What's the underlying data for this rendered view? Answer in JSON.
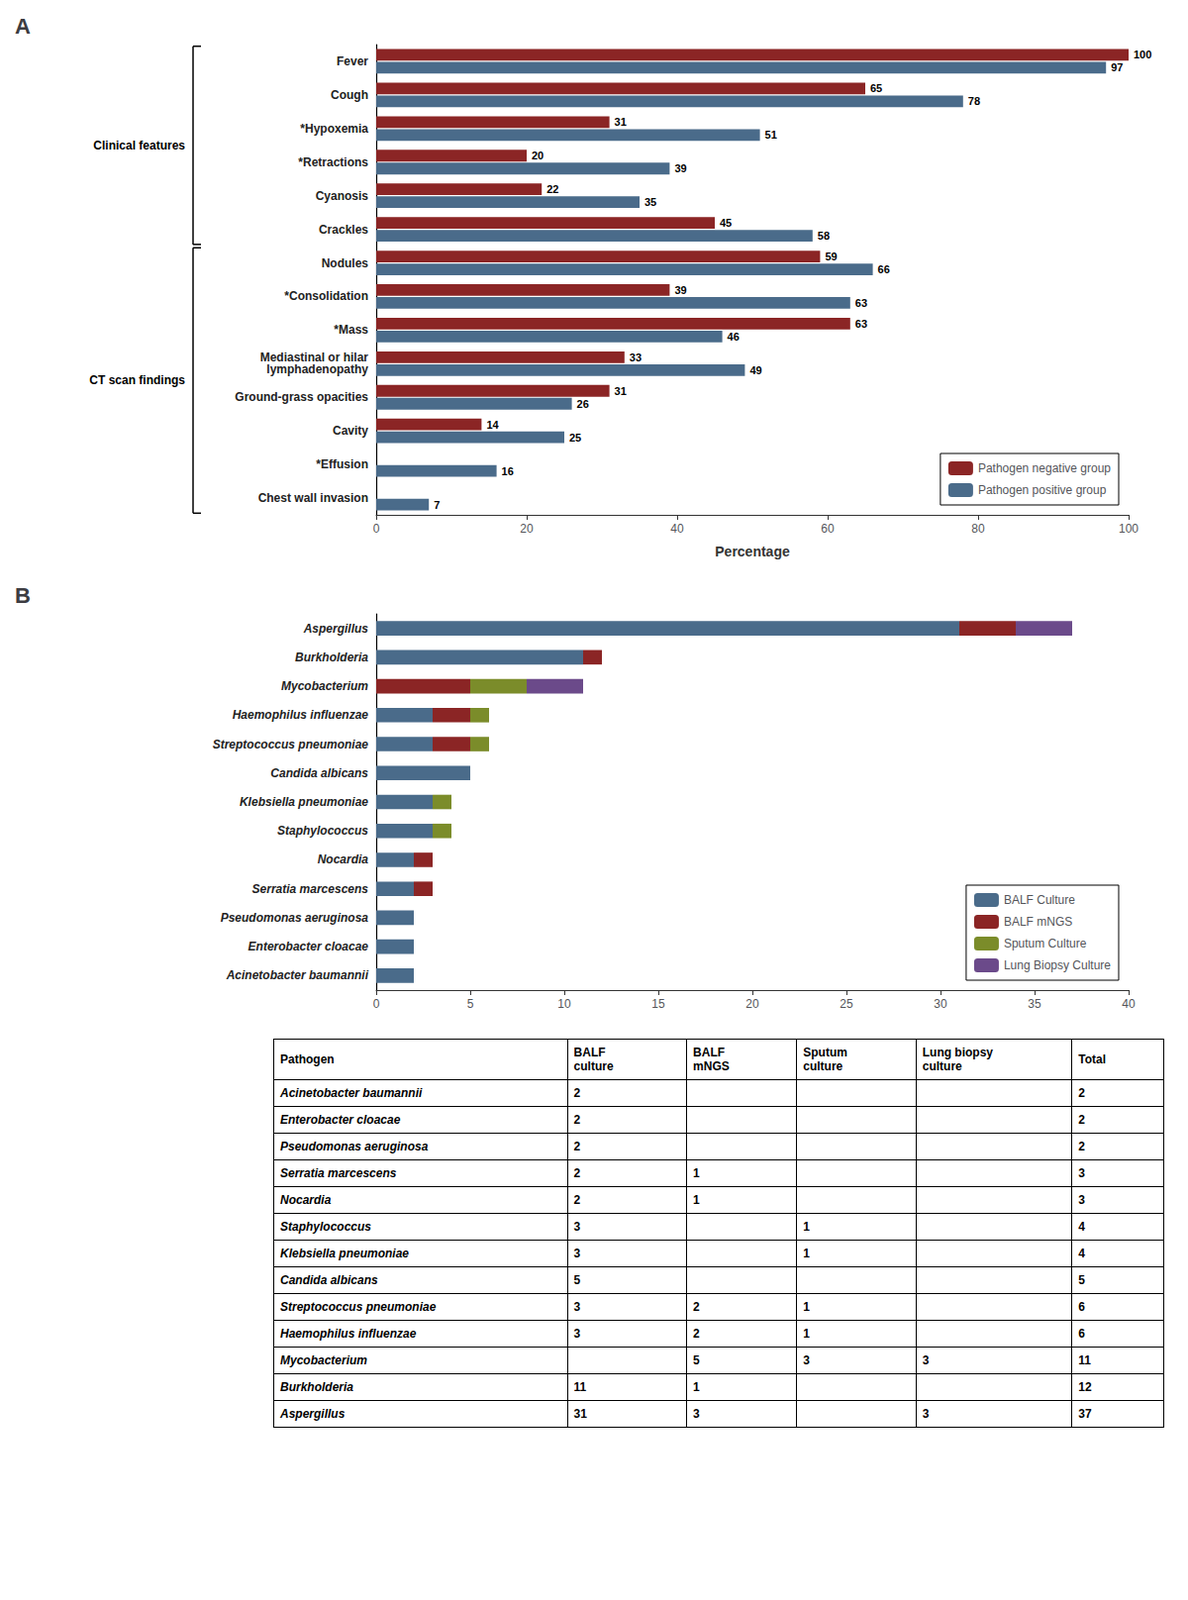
{
  "chart_data": [
    {
      "type": "bar",
      "title": "A",
      "orientation": "horizontal",
      "categories": [
        "Fever",
        "Cough",
        "*Hypoxemia",
        "*Retractions",
        "Cyanosis",
        "Crackles",
        "Nodules",
        "*Consolidation",
        "*Mass",
        "Mediastinal or hilar\nlymphadenopathy",
        "Ground-grass opacities",
        "Cavity",
        "*Effusion",
        "Chest wall invasion"
      ],
      "series": [
        {
          "name": "Pathogen negative group",
          "color": "#8B2525",
          "values": [
            100,
            65,
            31,
            20,
            22,
            45,
            59,
            39,
            63,
            33,
            31,
            14,
            null,
            null
          ]
        },
        {
          "name": "Pathogen positive group",
          "color": "#4A6B8A",
          "values": [
            97,
            78,
            51,
            39,
            35,
            58,
            66,
            63,
            46,
            49,
            26,
            25,
            16,
            7
          ]
        }
      ],
      "xlabel": "Percentage",
      "xlim": [
        0,
        100
      ],
      "xticks": [
        0,
        20,
        40,
        60,
        80,
        100
      ],
      "data_labels": true,
      "legend": "lower right",
      "grid": false,
      "annotations": [
        {
          "text": "Clinical features",
          "from": "Fever",
          "to": "Crackles"
        },
        {
          "text": "CT scan findings",
          "from": "Nodules",
          "to": "Chest wall invasion"
        }
      ]
    },
    {
      "type": "bar",
      "title": "B",
      "orientation": "horizontal",
      "stacked": true,
      "categories": [
        "Aspergillus",
        "Burkholderia",
        "Mycobacterium",
        "Haemophilus influenzae",
        "Streptococcus pneumoniae",
        "Candida albicans",
        "Klebsiella pneumoniae",
        "Staphylococcus",
        "Nocardia",
        "Serratia marcescens",
        "Pseudomonas aeruginosa",
        "Enterobacter cloacae",
        "Acinetobacter baumannii"
      ],
      "series": [
        {
          "name": "BALF Culture",
          "color": "#4A6B8A",
          "values": [
            31,
            11,
            0,
            3,
            3,
            5,
            3,
            3,
            2,
            2,
            2,
            2,
            2
          ]
        },
        {
          "name": "BALF mNGS",
          "color": "#8B2525",
          "values": [
            3,
            1,
            5,
            2,
            2,
            0,
            0,
            0,
            1,
            1,
            0,
            0,
            0
          ]
        },
        {
          "name": "Sputum Culture",
          "color": "#7B8C2A",
          "values": [
            0,
            0,
            3,
            1,
            1,
            0,
            1,
            1,
            0,
            0,
            0,
            0,
            0
          ]
        },
        {
          "name": "Lung Biopsy Culture",
          "color": "#6B4A8A",
          "values": [
            3,
            0,
            3,
            0,
            0,
            0,
            0,
            0,
            0,
            0,
            0,
            0,
            0
          ]
        }
      ],
      "xlim": [
        0,
        40
      ],
      "xticks": [
        0,
        5,
        10,
        15,
        20,
        25,
        30,
        35,
        40
      ],
      "legend": "lower right",
      "grid": false
    },
    {
      "type": "table",
      "columns": [
        "Pathogen",
        "BALF\nculture",
        "BALF\nmNGS",
        "Sputum\nculture",
        "Lung biopsy\nculture",
        "Total"
      ],
      "rows": [
        [
          "Acinetobacter baumannii",
          2,
          null,
          null,
          null,
          2
        ],
        [
          "Enterobacter cloacae",
          2,
          null,
          null,
          null,
          2
        ],
        [
          "Pseudomonas aeruginosa",
          2,
          null,
          null,
          null,
          2
        ],
        [
          "Serratia marcescens",
          2,
          1,
          null,
          null,
          3
        ],
        [
          "Nocardia",
          2,
          1,
          null,
          null,
          3
        ],
        [
          "Staphylococcus",
          3,
          null,
          1,
          null,
          4
        ],
        [
          "Klebsiella pneumoniae",
          3,
          null,
          1,
          null,
          4
        ],
        [
          "Candida albicans",
          5,
          null,
          null,
          null,
          5
        ],
        [
          "Streptococcus pneumoniae",
          3,
          2,
          1,
          null,
          6
        ],
        [
          "Haemophilus influenzae",
          3,
          2,
          1,
          null,
          6
        ],
        [
          "Mycobacterium",
          null,
          5,
          3,
          3,
          11
        ],
        [
          "Burkholderia",
          11,
          1,
          null,
          null,
          12
        ],
        [
          "Aspergillus",
          31,
          3,
          null,
          3,
          37
        ]
      ]
    }
  ]
}
